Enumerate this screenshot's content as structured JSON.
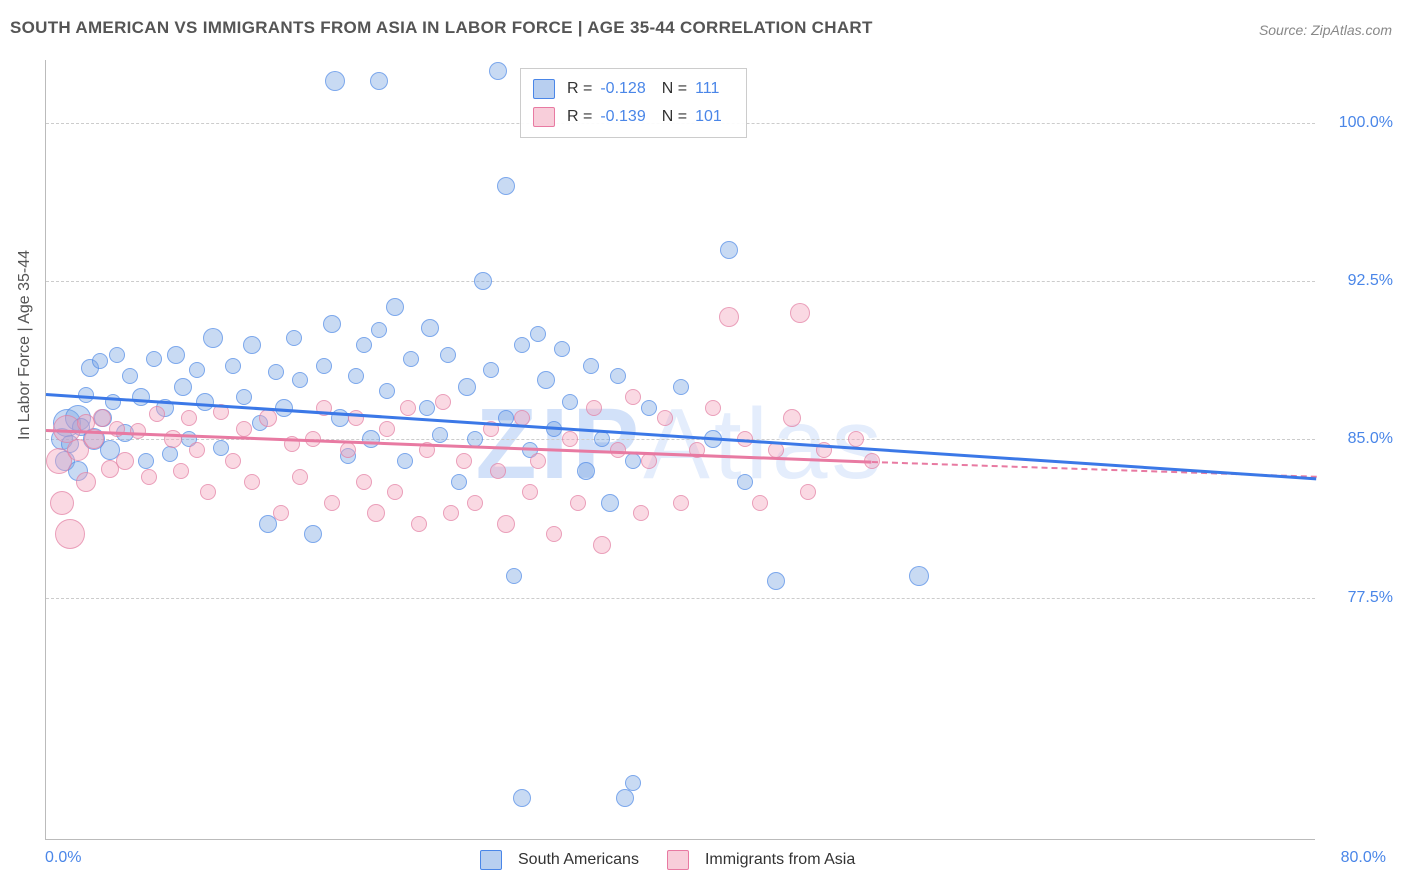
{
  "title": "SOUTH AMERICAN VS IMMIGRANTS FROM ASIA IN LABOR FORCE | AGE 35-44 CORRELATION CHART",
  "source": "Source: ZipAtlas.com",
  "ylabel": "In Labor Force | Age 35-44",
  "watermark": "ZIPAtlas",
  "chart": {
    "type": "scatter",
    "xlim": [
      0,
      80
    ],
    "ylim": [
      66,
      103
    ],
    "x_ticks": [
      {
        "val": 0,
        "label": "0.0%"
      },
      {
        "val": 80,
        "label": "80.0%"
      }
    ],
    "y_ticks": [
      {
        "val": 77.5,
        "label": "77.5%"
      },
      {
        "val": 85.0,
        "label": "85.0%"
      },
      {
        "val": 92.5,
        "label": "92.5%"
      },
      {
        "val": 100.0,
        "label": "100.0%"
      }
    ],
    "grid_color": "#cccccc",
    "background_color": "#ffffff",
    "axis_color": "#bbbbbb",
    "tick_label_color": "#4a86e8",
    "label_fontsize": 16,
    "title_fontsize": 17,
    "title_color": "#555555",
    "point_radius_range": [
      7,
      16
    ]
  },
  "series": [
    {
      "name": "South Americans",
      "marker_fill": "rgba(125,168,227,0.42)",
      "marker_stroke": "rgba(74,134,232,0.6)",
      "line_color": "#3b78e7",
      "line_width": 3,
      "r": -0.128,
      "n": 111,
      "regression": {
        "x1": 0,
        "y1": 87.2,
        "x2": 80,
        "y2": 83.2
      },
      "points": [
        {
          "x": 1.0,
          "y": 85.0,
          "r": 11
        },
        {
          "x": 1.2,
          "y": 84.0,
          "r": 10
        },
        {
          "x": 1.5,
          "y": 84.8,
          "r": 9
        },
        {
          "x": 1.3,
          "y": 85.8,
          "r": 14
        },
        {
          "x": 2.0,
          "y": 86.0,
          "r": 13
        },
        {
          "x": 2.0,
          "y": 83.5,
          "r": 10
        },
        {
          "x": 2.2,
          "y": 85.6,
          "r": 9
        },
        {
          "x": 2.5,
          "y": 87.1,
          "r": 8
        },
        {
          "x": 2.8,
          "y": 88.4,
          "r": 9
        },
        {
          "x": 3.0,
          "y": 85.0,
          "r": 11
        },
        {
          "x": 3.4,
          "y": 88.7,
          "r": 8
        },
        {
          "x": 3.6,
          "y": 86.0,
          "r": 9
        },
        {
          "x": 4.0,
          "y": 84.5,
          "r": 10
        },
        {
          "x": 4.2,
          "y": 86.8,
          "r": 8
        },
        {
          "x": 4.5,
          "y": 89.0,
          "r": 8
        },
        {
          "x": 5.0,
          "y": 85.3,
          "r": 9
        },
        {
          "x": 5.3,
          "y": 88.0,
          "r": 8
        },
        {
          "x": 6.0,
          "y": 87.0,
          "r": 9
        },
        {
          "x": 6.3,
          "y": 84.0,
          "r": 8
        },
        {
          "x": 6.8,
          "y": 88.8,
          "r": 8
        },
        {
          "x": 7.5,
          "y": 86.5,
          "r": 9
        },
        {
          "x": 7.8,
          "y": 84.3,
          "r": 8
        },
        {
          "x": 8.2,
          "y": 89.0,
          "r": 9
        },
        {
          "x": 8.6,
          "y": 87.5,
          "r": 9
        },
        {
          "x": 9.0,
          "y": 85.0,
          "r": 8
        },
        {
          "x": 9.5,
          "y": 88.3,
          "r": 8
        },
        {
          "x": 10.0,
          "y": 86.8,
          "r": 9
        },
        {
          "x": 10.5,
          "y": 89.8,
          "r": 10
        },
        {
          "x": 11.0,
          "y": 84.6,
          "r": 8
        },
        {
          "x": 11.8,
          "y": 88.5,
          "r": 8
        },
        {
          "x": 12.5,
          "y": 87.0,
          "r": 8
        },
        {
          "x": 13.0,
          "y": 89.5,
          "r": 9
        },
        {
          "x": 13.5,
          "y": 85.8,
          "r": 8
        },
        {
          "x": 14.0,
          "y": 81.0,
          "r": 9
        },
        {
          "x": 14.5,
          "y": 88.2,
          "r": 8
        },
        {
          "x": 15.0,
          "y": 86.5,
          "r": 9
        },
        {
          "x": 15.6,
          "y": 89.8,
          "r": 8
        },
        {
          "x": 16.0,
          "y": 87.8,
          "r": 8
        },
        {
          "x": 16.8,
          "y": 80.5,
          "r": 9
        },
        {
          "x": 17.5,
          "y": 88.5,
          "r": 8
        },
        {
          "x": 18.0,
          "y": 90.5,
          "r": 9
        },
        {
          "x": 18.2,
          "y": 102.0,
          "r": 10
        },
        {
          "x": 18.5,
          "y": 86.0,
          "r": 9
        },
        {
          "x": 19.0,
          "y": 84.2,
          "r": 8
        },
        {
          "x": 19.5,
          "y": 88.0,
          "r": 8
        },
        {
          "x": 20.0,
          "y": 89.5,
          "r": 8
        },
        {
          "x": 20.5,
          "y": 85.0,
          "r": 9
        },
        {
          "x": 21.0,
          "y": 90.2,
          "r": 8
        },
        {
          "x": 21.0,
          "y": 102.0,
          "r": 9
        },
        {
          "x": 21.5,
          "y": 87.3,
          "r": 8
        },
        {
          "x": 22.0,
          "y": 91.3,
          "r": 9
        },
        {
          "x": 22.6,
          "y": 84.0,
          "r": 8
        },
        {
          "x": 23.0,
          "y": 88.8,
          "r": 8
        },
        {
          "x": 24.0,
          "y": 86.5,
          "r": 8
        },
        {
          "x": 24.2,
          "y": 90.3,
          "r": 9
        },
        {
          "x": 24.8,
          "y": 85.2,
          "r": 8
        },
        {
          "x": 25.3,
          "y": 89.0,
          "r": 8
        },
        {
          "x": 26.0,
          "y": 83.0,
          "r": 8
        },
        {
          "x": 26.5,
          "y": 87.5,
          "r": 9
        },
        {
          "x": 27.0,
          "y": 85.0,
          "r": 8
        },
        {
          "x": 27.5,
          "y": 92.5,
          "r": 9
        },
        {
          "x": 28.0,
          "y": 88.3,
          "r": 8
        },
        {
          "x": 28.5,
          "y": 102.5,
          "r": 9
        },
        {
          "x": 29.0,
          "y": 97.0,
          "r": 9
        },
        {
          "x": 29.0,
          "y": 86.0,
          "r": 8
        },
        {
          "x": 29.5,
          "y": 78.5,
          "r": 8
        },
        {
          "x": 30.0,
          "y": 89.5,
          "r": 8
        },
        {
          "x": 30.0,
          "y": 68.0,
          "r": 9
        },
        {
          "x": 30.5,
          "y": 84.5,
          "r": 8
        },
        {
          "x": 31.0,
          "y": 90.0,
          "r": 8
        },
        {
          "x": 31.5,
          "y": 87.8,
          "r": 9
        },
        {
          "x": 32.0,
          "y": 85.5,
          "r": 8
        },
        {
          "x": 32.5,
          "y": 89.3,
          "r": 8
        },
        {
          "x": 33.0,
          "y": 86.8,
          "r": 8
        },
        {
          "x": 34.0,
          "y": 83.5,
          "r": 9
        },
        {
          "x": 34.3,
          "y": 88.5,
          "r": 8
        },
        {
          "x": 35.0,
          "y": 85.0,
          "r": 8
        },
        {
          "x": 35.5,
          "y": 82.0,
          "r": 9
        },
        {
          "x": 36.0,
          "y": 88.0,
          "r": 8
        },
        {
          "x": 36.5,
          "y": 68.0,
          "r": 9
        },
        {
          "x": 37.0,
          "y": 68.7,
          "r": 8
        },
        {
          "x": 37.0,
          "y": 84.0,
          "r": 8
        },
        {
          "x": 38.0,
          "y": 86.5,
          "r": 8
        },
        {
          "x": 40.0,
          "y": 87.5,
          "r": 8
        },
        {
          "x": 42.0,
          "y": 85.0,
          "r": 9
        },
        {
          "x": 43.0,
          "y": 94.0,
          "r": 9
        },
        {
          "x": 44.0,
          "y": 83.0,
          "r": 8
        },
        {
          "x": 46.0,
          "y": 78.3,
          "r": 9
        },
        {
          "x": 55.0,
          "y": 78.5,
          "r": 10
        }
      ]
    },
    {
      "name": "Immigrants from Asia",
      "marker_fill": "rgba(242,165,188,0.42)",
      "marker_stroke": "rgba(224,120,158,0.6)",
      "line_color": "#e87aa2",
      "line_width": 2,
      "r": -0.139,
      "n": 101,
      "regression": {
        "x1": 0,
        "y1": 85.5,
        "x2": 52,
        "y2": 84.0
      },
      "regression_dashed": {
        "x1": 52,
        "y1": 84.0,
        "x2": 80,
        "y2": 83.3
      },
      "points": [
        {
          "x": 1.0,
          "y": 82.0,
          "r": 12
        },
        {
          "x": 0.8,
          "y": 84.0,
          "r": 13
        },
        {
          "x": 1.3,
          "y": 85.5,
          "r": 14
        },
        {
          "x": 1.5,
          "y": 80.5,
          "r": 15
        },
        {
          "x": 2.0,
          "y": 84.5,
          "r": 11
        },
        {
          "x": 2.5,
          "y": 83.0,
          "r": 10
        },
        {
          "x": 2.5,
          "y": 85.8,
          "r": 9
        },
        {
          "x": 3.0,
          "y": 85.0,
          "r": 10
        },
        {
          "x": 3.5,
          "y": 86.0,
          "r": 9
        },
        {
          "x": 4.0,
          "y": 83.6,
          "r": 9
        },
        {
          "x": 4.5,
          "y": 85.5,
          "r": 8
        },
        {
          "x": 5.0,
          "y": 84.0,
          "r": 9
        },
        {
          "x": 5.8,
          "y": 85.4,
          "r": 8
        },
        {
          "x": 6.5,
          "y": 83.2,
          "r": 8
        },
        {
          "x": 7.0,
          "y": 86.2,
          "r": 8
        },
        {
          "x": 8.0,
          "y": 85.0,
          "r": 9
        },
        {
          "x": 8.5,
          "y": 83.5,
          "r": 8
        },
        {
          "x": 9.0,
          "y": 86.0,
          "r": 8
        },
        {
          "x": 9.5,
          "y": 84.5,
          "r": 8
        },
        {
          "x": 10.2,
          "y": 82.5,
          "r": 8
        },
        {
          "x": 11.0,
          "y": 86.3,
          "r": 8
        },
        {
          "x": 11.8,
          "y": 84.0,
          "r": 8
        },
        {
          "x": 12.5,
          "y": 85.5,
          "r": 8
        },
        {
          "x": 13.0,
          "y": 83.0,
          "r": 8
        },
        {
          "x": 14.0,
          "y": 86.0,
          "r": 9
        },
        {
          "x": 14.8,
          "y": 81.5,
          "r": 8
        },
        {
          "x": 15.5,
          "y": 84.8,
          "r": 8
        },
        {
          "x": 16.0,
          "y": 83.2,
          "r": 8
        },
        {
          "x": 16.8,
          "y": 85.0,
          "r": 8
        },
        {
          "x": 17.5,
          "y": 86.5,
          "r": 8
        },
        {
          "x": 18.0,
          "y": 82.0,
          "r": 8
        },
        {
          "x": 19.0,
          "y": 84.5,
          "r": 8
        },
        {
          "x": 19.5,
          "y": 86.0,
          "r": 8
        },
        {
          "x": 20.0,
          "y": 83.0,
          "r": 8
        },
        {
          "x": 20.8,
          "y": 81.5,
          "r": 9
        },
        {
          "x": 21.5,
          "y": 85.5,
          "r": 8
        },
        {
          "x": 22.0,
          "y": 82.5,
          "r": 8
        },
        {
          "x": 22.8,
          "y": 86.5,
          "r": 8
        },
        {
          "x": 23.5,
          "y": 81.0,
          "r": 8
        },
        {
          "x": 24.0,
          "y": 84.5,
          "r": 8
        },
        {
          "x": 25.0,
          "y": 86.8,
          "r": 8
        },
        {
          "x": 25.5,
          "y": 81.5,
          "r": 8
        },
        {
          "x": 26.3,
          "y": 84.0,
          "r": 8
        },
        {
          "x": 27.0,
          "y": 82.0,
          "r": 8
        },
        {
          "x": 28.0,
          "y": 85.5,
          "r": 8
        },
        {
          "x": 28.5,
          "y": 83.5,
          "r": 8
        },
        {
          "x": 29.0,
          "y": 81.0,
          "r": 9
        },
        {
          "x": 30.0,
          "y": 86.0,
          "r": 8
        },
        {
          "x": 30.5,
          "y": 82.5,
          "r": 8
        },
        {
          "x": 31.0,
          "y": 84.0,
          "r": 8
        },
        {
          "x": 32.0,
          "y": 80.5,
          "r": 8
        },
        {
          "x": 33.0,
          "y": 85.0,
          "r": 8
        },
        {
          "x": 33.5,
          "y": 82.0,
          "r": 8
        },
        {
          "x": 34.5,
          "y": 86.5,
          "r": 8
        },
        {
          "x": 35.0,
          "y": 80.0,
          "r": 9
        },
        {
          "x": 36.0,
          "y": 84.5,
          "r": 8
        },
        {
          "x": 37.0,
          "y": 87.0,
          "r": 8
        },
        {
          "x": 37.5,
          "y": 81.5,
          "r": 8
        },
        {
          "x": 38.0,
          "y": 84.0,
          "r": 8
        },
        {
          "x": 39.0,
          "y": 86.0,
          "r": 8
        },
        {
          "x": 40.0,
          "y": 82.0,
          "r": 8
        },
        {
          "x": 41.0,
          "y": 84.5,
          "r": 8
        },
        {
          "x": 42.0,
          "y": 86.5,
          "r": 8
        },
        {
          "x": 43.0,
          "y": 90.8,
          "r": 10
        },
        {
          "x": 44.0,
          "y": 85.0,
          "r": 8
        },
        {
          "x": 45.0,
          "y": 82.0,
          "r": 8
        },
        {
          "x": 46.0,
          "y": 84.5,
          "r": 8
        },
        {
          "x": 47.0,
          "y": 86.0,
          "r": 9
        },
        {
          "x": 47.5,
          "y": 91.0,
          "r": 10
        },
        {
          "x": 48.0,
          "y": 82.5,
          "r": 8
        },
        {
          "x": 49.0,
          "y": 84.5,
          "r": 8
        },
        {
          "x": 51.0,
          "y": 85.0,
          "r": 8
        },
        {
          "x": 52.0,
          "y": 84.0,
          "r": 8
        }
      ]
    }
  ],
  "legend_top": {
    "rows": [
      {
        "swatch": "blue",
        "r_label": "R =",
        "r_val": "-0.128",
        "n_label": "N =",
        "n_val": "111"
      },
      {
        "swatch": "pink",
        "r_label": "R =",
        "r_val": "-0.139",
        "n_label": "N =",
        "n_val": "101"
      }
    ]
  },
  "legend_bottom": [
    {
      "swatch": "blue",
      "label": "South Americans"
    },
    {
      "swatch": "pink",
      "label": "Immigrants from Asia"
    }
  ],
  "swatches": {
    "blue": {
      "fill": "rgba(125,168,227,0.55)",
      "stroke": "#4a86e8"
    },
    "pink": {
      "fill": "rgba(242,165,188,0.55)",
      "stroke": "#e87aa2"
    }
  }
}
